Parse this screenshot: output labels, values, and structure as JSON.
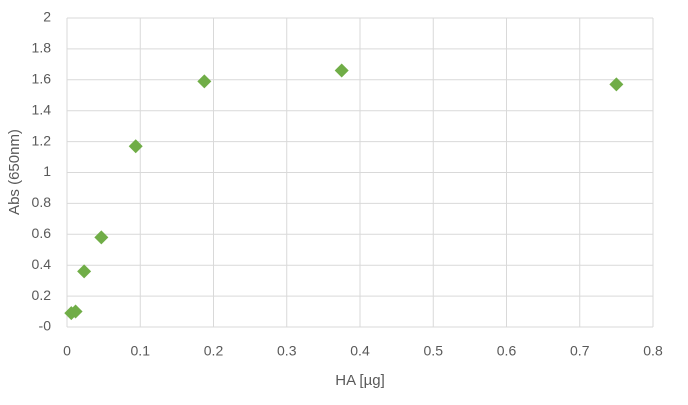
{
  "chart_data": {
    "type": "scatter",
    "x_label": "HA [µg]",
    "y_label": "Abs (650nm)",
    "series": [
      {
        "color": "#70ad47",
        "x": [
          0.00586,
          0.0117,
          0.0234,
          0.0469,
          0.0938,
          0.1875,
          0.375,
          0.75
        ],
        "values": [
          0.09,
          0.1,
          0.36,
          0.58,
          1.17,
          1.59,
          1.66,
          1.57
        ]
      }
    ],
    "xlim": [
      0,
      0.8
    ],
    "xticks": [
      0,
      0.1,
      0.2,
      0.3,
      0.4,
      0.5,
      0.6,
      0.7,
      0.8
    ],
    "ylim": [
      0,
      2
    ],
    "yticks": [
      {
        "value": 0,
        "label": "-0"
      },
      0.2,
      0.4,
      0.6,
      0.8,
      1,
      1.2,
      1.4,
      1.6,
      1.8,
      2
    ],
    "grid": true
  }
}
